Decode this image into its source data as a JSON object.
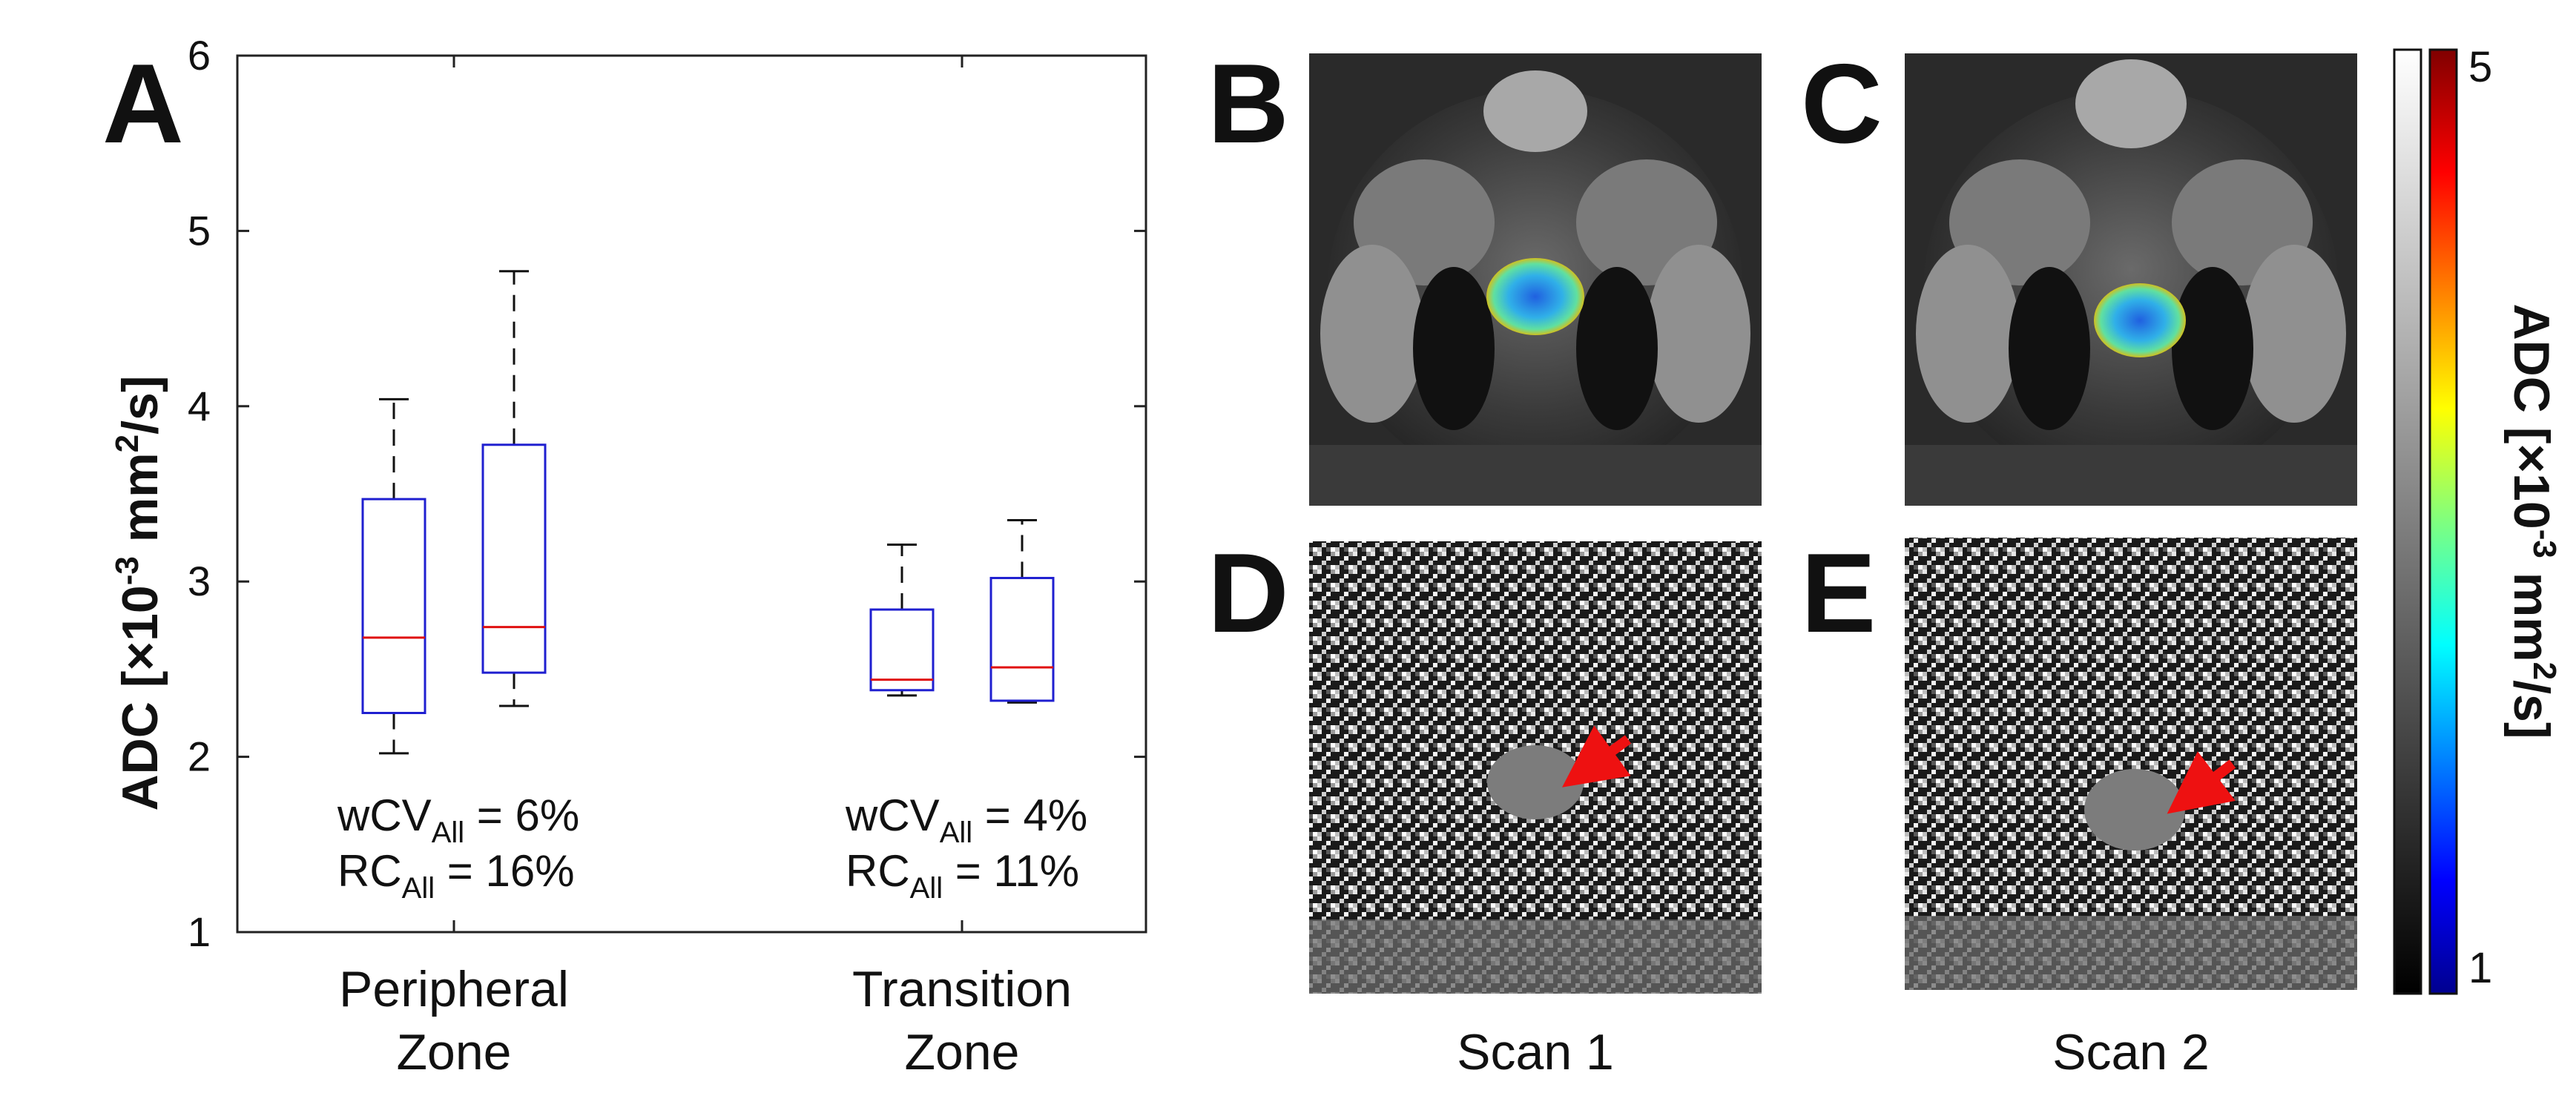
{
  "panels": {
    "a_label": "A",
    "b_label": "B",
    "c_label": "C",
    "d_label": "D",
    "e_label": "E"
  },
  "chart_data": {
    "type": "box",
    "ylabel": {
      "main": "ADC [×10",
      "exp1": "-3",
      "mid": " mm",
      "exp2": "2",
      "end": "/s]"
    },
    "ylim": [
      1,
      6
    ],
    "yticks": [
      1,
      2,
      3,
      4,
      5,
      6
    ],
    "categories": [
      {
        "line1": "Peripheral",
        "line2": "Zone"
      },
      {
        "line1": "Transition",
        "line2": "Zone"
      }
    ],
    "boxes": [
      {
        "group": 0,
        "scan": 1,
        "whisker_low": 2.02,
        "q1": 2.25,
        "median": 2.68,
        "q3": 3.47,
        "whisker_high": 4.04
      },
      {
        "group": 0,
        "scan": 2,
        "whisker_low": 2.29,
        "q1": 2.48,
        "median": 2.74,
        "q3": 3.78,
        "whisker_high": 4.77
      },
      {
        "group": 1,
        "scan": 1,
        "whisker_low": 2.35,
        "q1": 2.38,
        "median": 2.44,
        "q3": 2.84,
        "whisker_high": 3.21
      },
      {
        "group": 1,
        "scan": 2,
        "whisker_low": 2.31,
        "q1": 2.32,
        "median": 2.51,
        "q3": 3.02,
        "whisker_high": 3.35
      }
    ],
    "annotations": [
      {
        "wcv_prefix": "wCV",
        "wcv_sub": "All",
        "wcv_value": " = 6%",
        "rc_prefix": "RC",
        "rc_sub": "All",
        "rc_value": " = 16%"
      },
      {
        "wcv_prefix": "wCV",
        "wcv_sub": "All",
        "wcv_value": " = 4%",
        "rc_prefix": "RC",
        "rc_sub": "All",
        "rc_value": " = 11%"
      }
    ],
    "colors": {
      "box": "#1f1fd0",
      "median": "#e01010",
      "whisker": "#111111"
    }
  },
  "images": {
    "scan1_label": "Scan 1",
    "scan2_label": "Scan 2"
  },
  "colorbar": {
    "label": {
      "main": "ADC [×10",
      "exp1": "-3",
      "mid": " mm",
      "exp2": "2",
      "end": "/s]"
    },
    "max_label": "5",
    "min_label": "1"
  }
}
